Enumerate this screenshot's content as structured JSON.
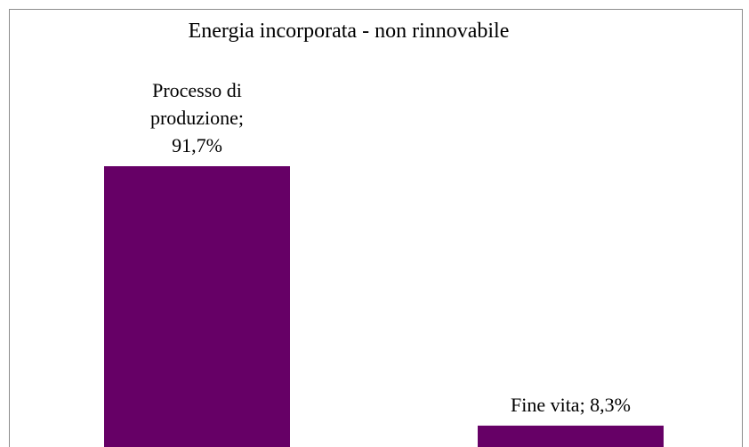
{
  "chart_data": {
    "type": "bar",
    "title": "Energia incorporata - non rinnovabile",
    "values": [
      91.7,
      8.3
    ],
    "value_labels": [
      "Processo di produzione; 91,7%",
      "Fine vita; 8,3%"
    ],
    "color": "#660066"
  }
}
